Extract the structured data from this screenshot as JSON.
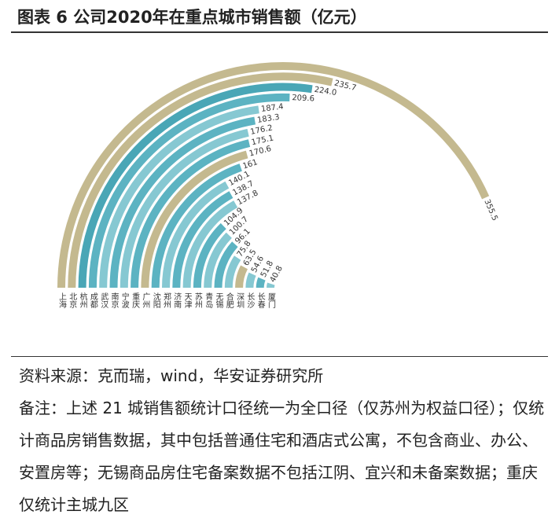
{
  "chart_data": {
    "type": "radial-bar",
    "title": "图表 6 公司2020年在重点城市销售额（亿元）",
    "categories": [
      "上海",
      "北京",
      "杭州",
      "成都",
      "武汉",
      "南京",
      "宁波",
      "重庆",
      "广州",
      "沈阳",
      "郑州",
      "济南",
      "天津",
      "苏州",
      "青岛",
      "无锡",
      "合肥",
      "深圳",
      "长沙",
      "长春",
      "厦门"
    ],
    "values": [
      355.5,
      235.7,
      224.0,
      209.6,
      187.4,
      183.3,
      176.2,
      175.1,
      170.6,
      161,
      140.1,
      138.7,
      137.8,
      104.9,
      100.7,
      96.1,
      75.8,
      63.5,
      54.6,
      51.8,
      40.8
    ],
    "value_labels": [
      "355.5",
      "235.7",
      "224.0",
      "209.6",
      "187.4",
      "183.3",
      "176.2",
      "175.1",
      "170.6",
      "161",
      "140.1",
      "138.7",
      "137.8",
      "104.9",
      "100.7",
      "96.1",
      "75.8",
      "63.5",
      "54.6",
      "51.8",
      "40.8"
    ],
    "colors": [
      "#c4b98f",
      "#c4b98f",
      "#49a6b6",
      "#5cb3c2",
      "#86c8d2",
      "#5cb3c2",
      "#86c8d2",
      "#5cb3c2",
      "#c4b98f",
      "#5cb3c2",
      "#86c8d2",
      "#5cb3c2",
      "#86c8d2",
      "#5cb3c2",
      "#86c8d2",
      "#5cb3c2",
      "#86c8d2",
      "#c4b98f",
      "#86c8d2",
      "#5cb3c2",
      "#86c8d2"
    ]
  },
  "source": "资料来源：克而瑞，wind，华安证券研究所",
  "note": "备注：上述 21 城销售额统计口径统一为全口径（仅苏州为权益口径）；仅统计商品房销售数据，其中包括普通住宅和酒店式公寓，不包含商业、办公、安置房等；无锡商品房住宅备案数据不包括江阴、宜兴和未备案数据；重庆仅统计主城九区"
}
